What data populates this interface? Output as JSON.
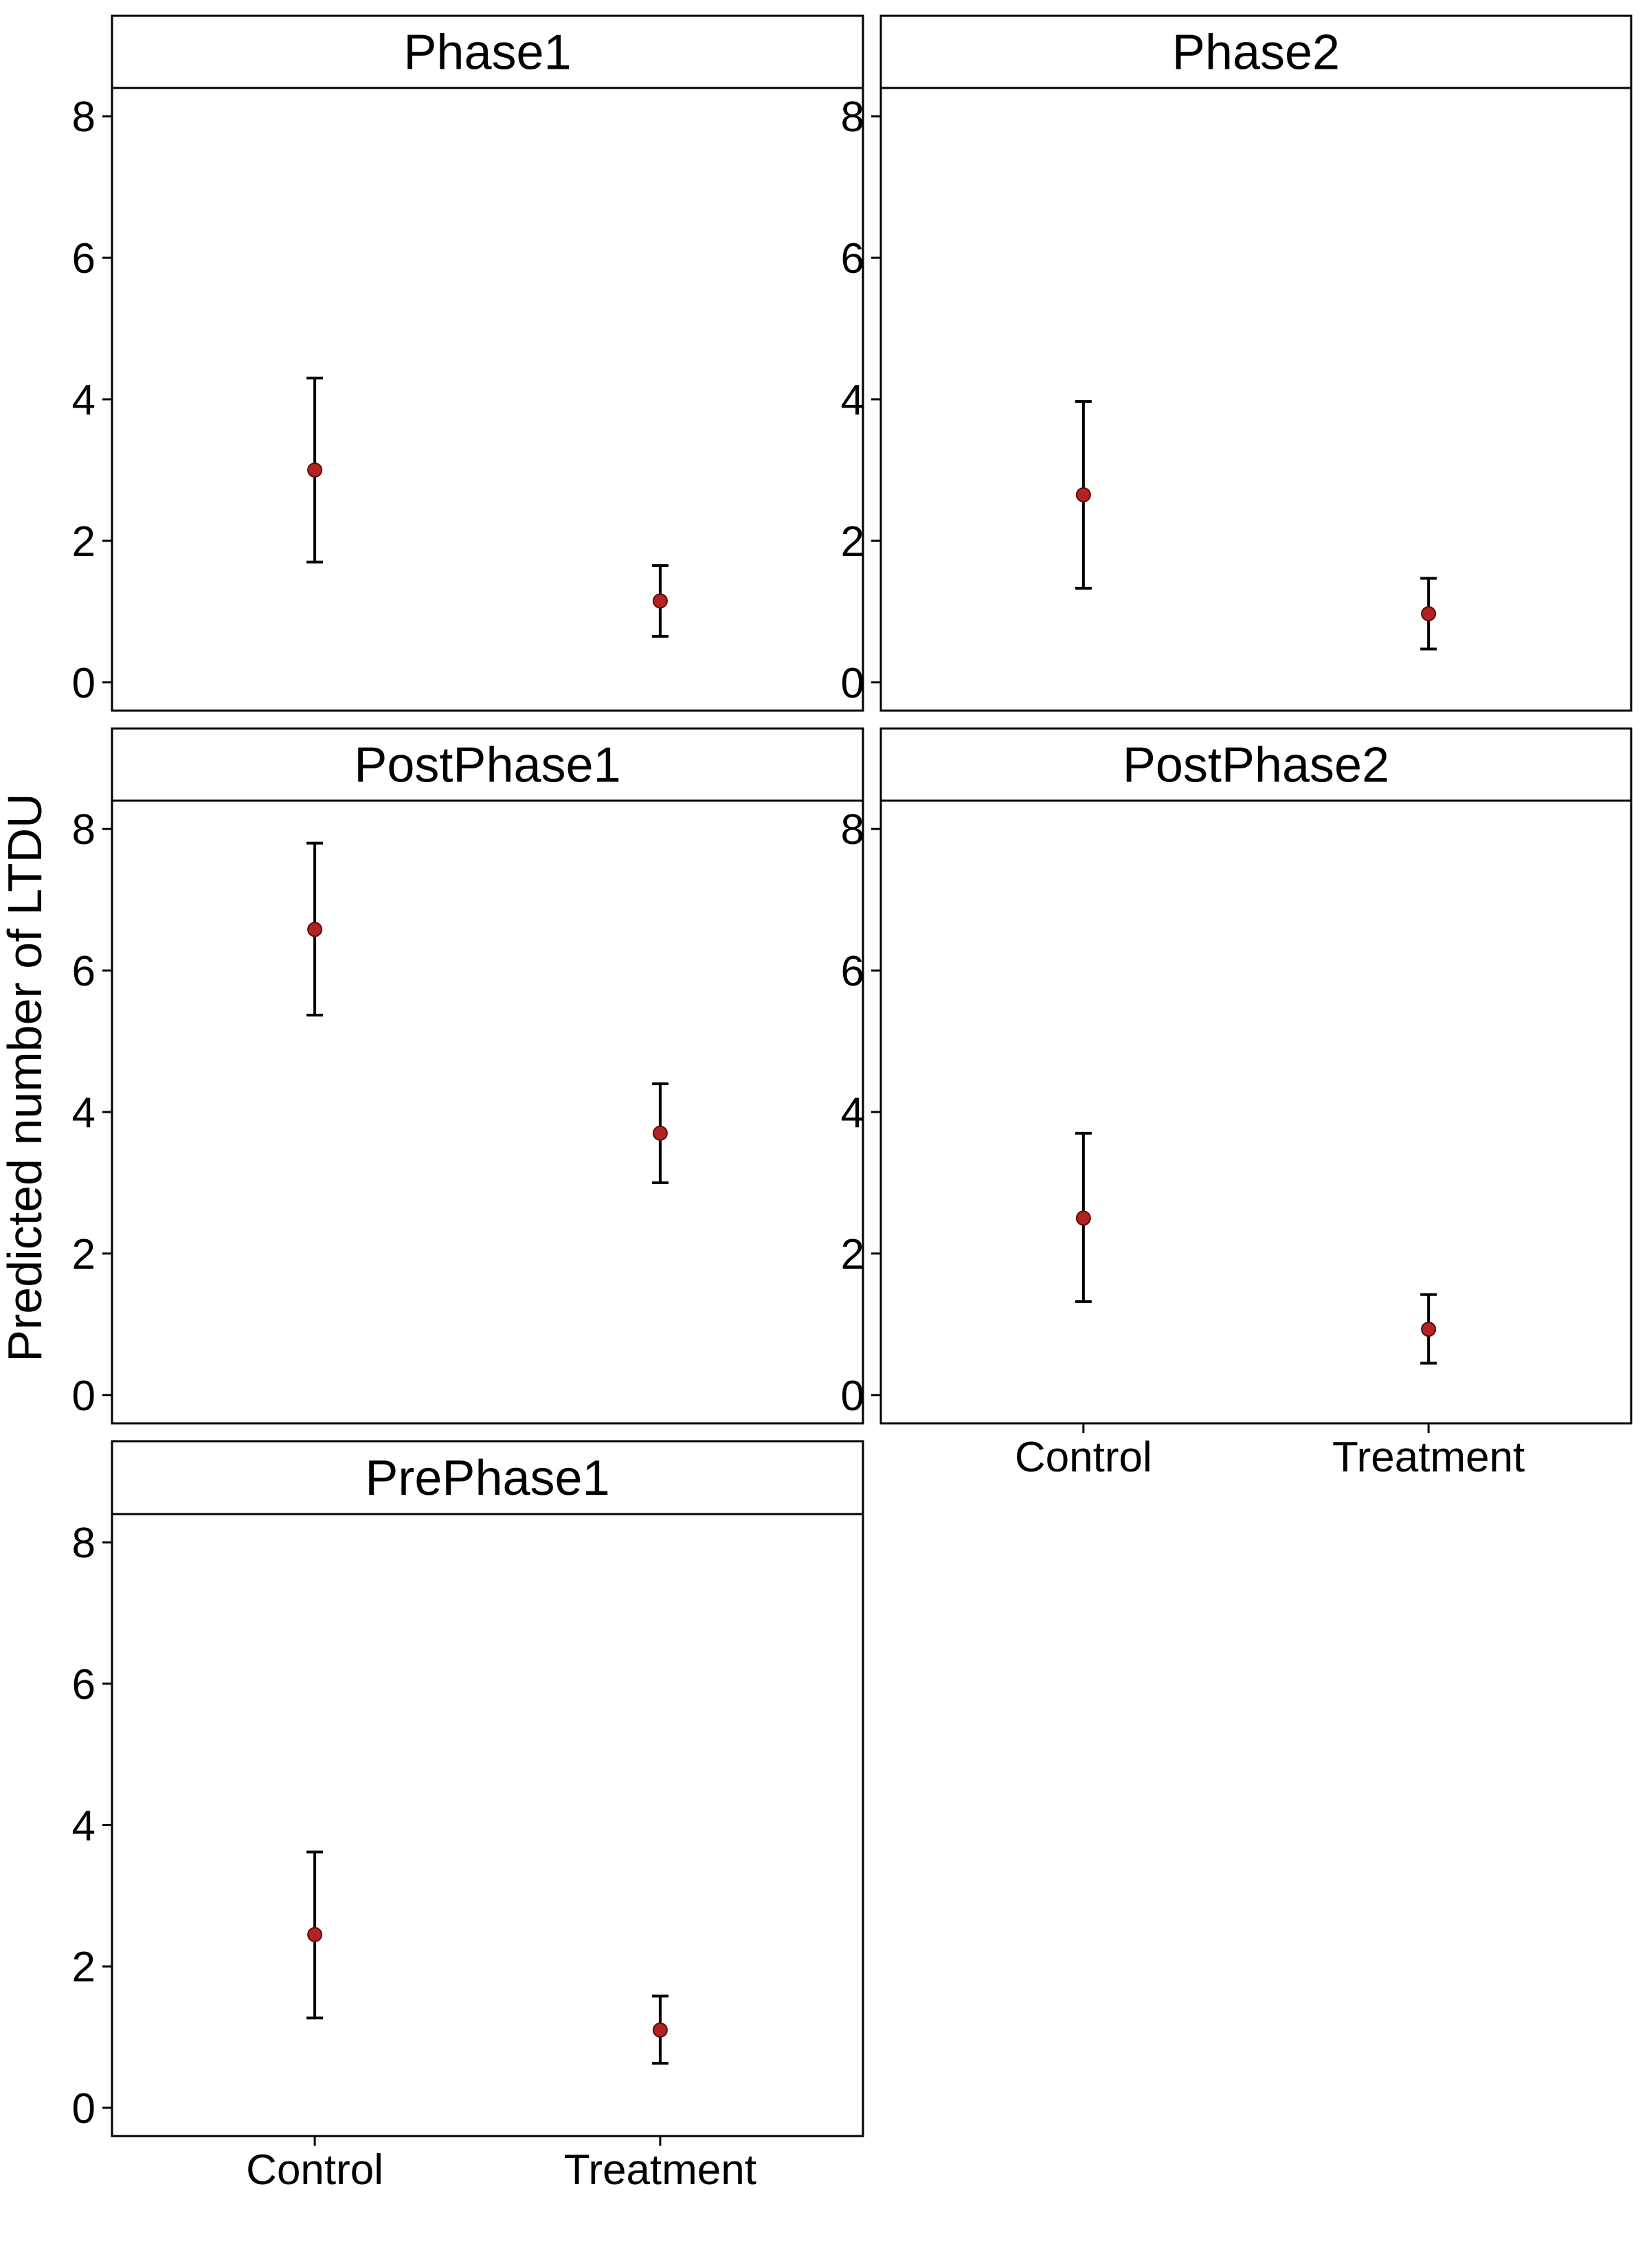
{
  "chart_data": {
    "type": "scatter",
    "subtype": "point-with-error-bars, faceted",
    "ylabel": "Predicted number of LTDU",
    "xlabel": "",
    "categories": [
      "Control",
      "Treatment"
    ],
    "ylim": [
      -0.4,
      8.4
    ],
    "yticks": [
      "0",
      "2",
      "4",
      "6",
      "8"
    ],
    "grid": false,
    "legend": "none",
    "point_color": "#B22222",
    "errorbar_color": "#000000",
    "panels": [
      {
        "title": "Phase1",
        "points": [
          {
            "x": "Control",
            "y": 3.0,
            "ymin": 1.7,
            "ymax": 4.3
          },
          {
            "x": "Treatment",
            "y": 1.15,
            "ymin": 0.65,
            "ymax": 1.65
          }
        ]
      },
      {
        "title": "Phase2",
        "points": [
          {
            "x": "Control",
            "y": 2.65,
            "ymin": 1.33,
            "ymax": 3.97
          },
          {
            "x": "Treatment",
            "y": 0.97,
            "ymin": 0.47,
            "ymax": 1.47
          }
        ]
      },
      {
        "title": "PostPhase1",
        "points": [
          {
            "x": "Control",
            "y": 6.58,
            "ymin": 5.37,
            "ymax": 7.8
          },
          {
            "x": "Treatment",
            "y": 3.7,
            "ymin": 3.0,
            "ymax": 4.4
          }
        ]
      },
      {
        "title": "PostPhase2",
        "points": [
          {
            "x": "Control",
            "y": 2.5,
            "ymin": 1.32,
            "ymax": 3.7
          },
          {
            "x": "Treatment",
            "y": 0.93,
            "ymin": 0.45,
            "ymax": 1.42
          }
        ]
      },
      {
        "title": "PrePhase1",
        "points": [
          {
            "x": "Control",
            "y": 2.45,
            "ymin": 1.27,
            "ymax": 3.62
          },
          {
            "x": "Treatment",
            "y": 1.1,
            "ymin": 0.63,
            "ymax": 1.58
          }
        ]
      }
    ]
  }
}
